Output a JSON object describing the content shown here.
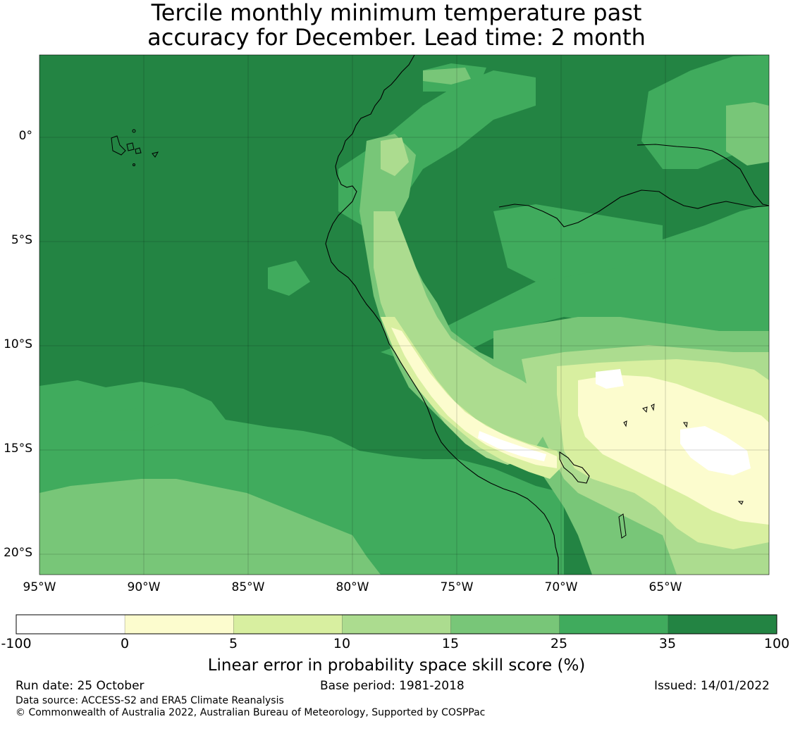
{
  "title": {
    "line1": "Tercile monthly minimum temperature past",
    "line2": "accuracy for December. Lead time: 2 month"
  },
  "map": {
    "lat_ticks": [
      "0°",
      "5°S",
      "10°S",
      "15°S",
      "20°S"
    ],
    "lon_ticks": [
      "95°W",
      "90°W",
      "85°W",
      "80°W",
      "75°W",
      "70°W",
      "65°W"
    ],
    "lon_range": [
      -95,
      -60
    ],
    "lat_range": [
      -21,
      4
    ]
  },
  "colorbar": {
    "label": "Linear error in probability space skill score (%)",
    "ticks": [
      "-100",
      "0",
      "5",
      "10",
      "15",
      "25",
      "35",
      "100"
    ],
    "colors": [
      "#ffffff",
      "#fcfcce",
      "#d8efa0",
      "#acdc8f",
      "#78c678",
      "#40ab5d",
      "#238443"
    ]
  },
  "footer": {
    "run_date": "Run date: 25 October",
    "base_period": "Base period: 1981-2018",
    "issued": "Issued: 14/01/2022",
    "data_source": "Data source: ACCESS-S2 and ERA5 Climate Reanalysis",
    "copyright": "© Commonwealth of Australia 2022, Australian Bureau of Meteorology, Supported by COSPPac"
  }
}
